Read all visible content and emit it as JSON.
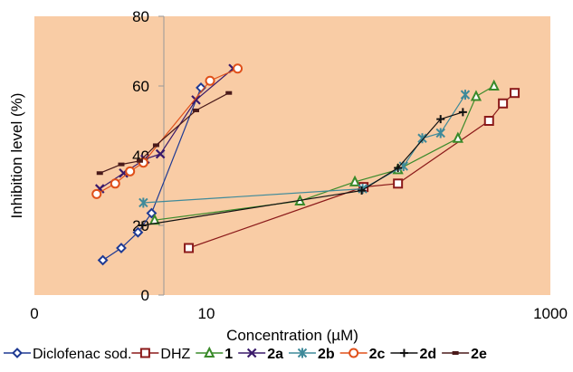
{
  "chart_data": {
    "type": "scatter",
    "title": "",
    "xlabel": "Concentration (µM)",
    "ylabel": "Inhibition level (%)",
    "x_scale": "log",
    "xlim": [
      1,
      1000
    ],
    "ylim": [
      0,
      80
    ],
    "x_ticks": [
      {
        "value": 1,
        "label": "0"
      },
      {
        "value": 10,
        "label": "10"
      },
      {
        "value": 1000,
        "label": "1000"
      }
    ],
    "y_ticks": [
      0,
      20,
      40,
      60,
      80
    ],
    "grid": false,
    "plot_background": "#f9cca5",
    "legend_position": "bottom",
    "series": [
      {
        "name": "Diclofenac sod.",
        "color": "#1f3a93",
        "marker": "diamond",
        "x": [
          2.5,
          3.2,
          4.0,
          4.8,
          9.3
        ],
        "y": [
          10,
          13.5,
          18,
          23.5,
          59.5
        ]
      },
      {
        "name": "DHZ",
        "color": "#8b1a1a",
        "marker": "square",
        "x": [
          7.9,
          82,
          130,
          440,
          530,
          620
        ],
        "y": [
          13.5,
          31,
          32,
          50,
          55,
          58
        ]
      },
      {
        "name": "1",
        "color": "#3a8a2a",
        "marker": "triangle",
        "x": [
          5.0,
          35,
          73,
          130,
          290,
          370,
          470
        ],
        "y": [
          21.5,
          27,
          32.5,
          36,
          45,
          57,
          60
        ]
      },
      {
        "name": "2a",
        "color": "#3a1a6a",
        "marker": "x",
        "x": [
          2.4,
          3.3,
          4.4,
          5.4,
          8.7,
          14.3
        ],
        "y": [
          30.5,
          35,
          39,
          40.5,
          56,
          65
        ]
      },
      {
        "name": "2b",
        "color": "#3f8a9a",
        "marker": "asterisk",
        "x": [
          4.3,
          81,
          140,
          180,
          230,
          320
        ],
        "y": [
          26.5,
          30.5,
          37,
          45,
          46.5,
          57.5
        ]
      },
      {
        "name": "2c",
        "color": "#e0501a",
        "marker": "circle",
        "x": [
          2.3,
          2.95,
          3.6,
          4.3,
          10.5,
          15.2
        ],
        "y": [
          29,
          32,
          35.5,
          38,
          61.5,
          65
        ]
      },
      {
        "name": "2d",
        "color": "#111111",
        "marker": "plus",
        "x": [
          4.25,
          80,
          130,
          230,
          310
        ],
        "y": [
          20,
          30,
          36.5,
          50.5,
          52.5
        ]
      },
      {
        "name": "2e",
        "color": "#4a1a1a",
        "marker": "dash",
        "x": [
          2.4,
          3.2,
          4.1,
          5.1,
          8.7,
          13.5
        ],
        "y": [
          35,
          37.5,
          38.5,
          43,
          53,
          58
        ]
      }
    ]
  }
}
